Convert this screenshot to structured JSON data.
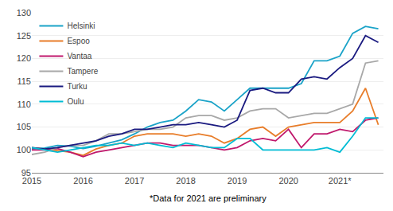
{
  "chart_data": {
    "type": "line",
    "annotations": [
      "*Data for 2021 are preliminary"
    ],
    "x": [
      2015.0,
      2015.25,
      2015.5,
      2015.75,
      2016.0,
      2016.25,
      2016.5,
      2016.75,
      2017.0,
      2017.25,
      2017.5,
      2017.75,
      2018.0,
      2018.25,
      2018.5,
      2018.75,
      2019.0,
      2019.25,
      2019.5,
      2019.75,
      2020.0,
      2020.25,
      2020.5,
      2020.75,
      2021.0,
      2021.25,
      2021.5,
      2021.75
    ],
    "series": [
      {
        "name": "Helsinki",
        "color": "#1aa3c8",
        "values": [
          100.2,
          100.4,
          101.0,
          100.8,
          100.3,
          100.8,
          101.5,
          102.2,
          103.5,
          105.0,
          106.0,
          106.5,
          108.5,
          111.0,
          110.5,
          108.5,
          111.0,
          113.5,
          113.5,
          113.5,
          113.5,
          114.5,
          119.5,
          119.5,
          120.5,
          125.5,
          127.0,
          126.5
        ]
      },
      {
        "name": "Espoo",
        "color": "#e87d2a",
        "values": [
          100.5,
          100.2,
          99.8,
          99.5,
          98.8,
          100.2,
          101.0,
          101.5,
          103.0,
          103.5,
          103.5,
          103.5,
          103.0,
          103.5,
          103.0,
          101.5,
          102.5,
          104.5,
          105.0,
          103.0,
          105.0,
          105.5,
          106.0,
          106.0,
          106.0,
          108.5,
          113.5,
          105.5
        ]
      },
      {
        "name": "Vantaa",
        "color": "#c0186c",
        "values": [
          100.0,
          100.0,
          100.3,
          99.5,
          98.5,
          99.5,
          100.0,
          100.5,
          101.0,
          101.5,
          101.5,
          101.0,
          101.0,
          101.0,
          100.5,
          100.0,
          100.5,
          102.0,
          102.5,
          102.0,
          104.5,
          100.5,
          103.5,
          103.5,
          104.5,
          104.0,
          106.5,
          107.0
        ]
      },
      {
        "name": "Tampere",
        "color": "#a8a8a8",
        "values": [
          99.0,
          99.5,
          100.5,
          101.0,
          101.0,
          102.0,
          103.5,
          103.5,
          104.0,
          104.5,
          104.5,
          105.0,
          107.0,
          107.5,
          107.5,
          106.5,
          107.0,
          108.5,
          109.0,
          109.0,
          107.0,
          107.5,
          108.0,
          108.0,
          109.0,
          110.0,
          119.0,
          119.5
        ]
      },
      {
        "name": "Turku",
        "color": "#1a1a80",
        "values": [
          100.5,
          100.2,
          100.5,
          101.0,
          101.5,
          102.0,
          103.0,
          103.5,
          104.5,
          104.5,
          105.0,
          105.5,
          105.5,
          106.0,
          105.5,
          105.0,
          106.5,
          113.0,
          113.5,
          112.5,
          112.5,
          115.5,
          116.0,
          115.5,
          118.0,
          120.0,
          125.0,
          123.5
        ]
      },
      {
        "name": "Oulu",
        "color": "#00bcd4",
        "values": [
          100.5,
          100.0,
          99.5,
          100.0,
          100.5,
          101.0,
          101.0,
          101.5,
          101.0,
          101.5,
          101.0,
          100.5,
          101.5,
          101.0,
          100.5,
          100.5,
          102.5,
          102.5,
          100.0,
          100.0,
          100.0,
          100.0,
          100.0,
          100.5,
          99.5,
          103.0,
          107.0,
          107.0
        ]
      }
    ],
    "xlim": [
      2015.0,
      2021.85
    ],
    "xticks": [
      2015,
      2016,
      2017,
      2018,
      2019,
      2020,
      {
        "value": 2021,
        "label": "2021*"
      }
    ],
    "ylim": [
      95,
      130
    ],
    "yticks": [
      95,
      100,
      105,
      110,
      115,
      120,
      125,
      130
    ],
    "grid": "y",
    "legend": "upper left"
  }
}
